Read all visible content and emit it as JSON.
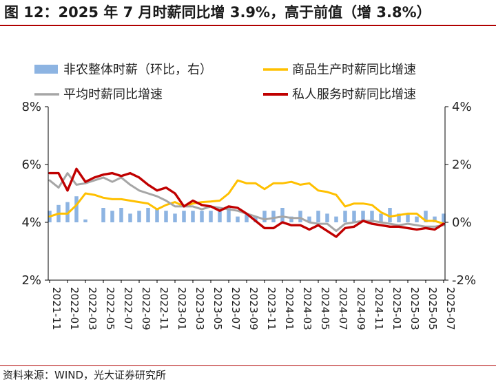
{
  "figure": {
    "title": "图 12：2025 年 7 月时薪同比增 3.9%，高于前值（增 3.8%）",
    "source": "资料来源：WIND，光大证券研究所"
  },
  "colors": {
    "bar": "#8db4e2",
    "goods": "#ffc000",
    "avg": "#a6a6a6",
    "private": "#c00000",
    "axis": "#000000",
    "title_rule": "#b00000"
  },
  "chart_data": {
    "type": "line",
    "x": [
      "2021-11",
      "2021-12",
      "2022-01",
      "2022-02",
      "2022-03",
      "2022-04",
      "2022-05",
      "2022-06",
      "2022-07",
      "2022-08",
      "2022-09",
      "2022-10",
      "2022-11",
      "2022-12",
      "2023-01",
      "2023-02",
      "2023-03",
      "2023-04",
      "2023-05",
      "2023-06",
      "2023-07",
      "2023-08",
      "2023-09",
      "2023-10",
      "2023-11",
      "2023-12",
      "2024-01",
      "2024-02",
      "2024-03",
      "2024-04",
      "2024-05",
      "2024-06",
      "2024-07",
      "2024-08",
      "2024-09",
      "2024-10",
      "2024-11",
      "2024-12",
      "2025-01",
      "2025-02",
      "2025-03",
      "2025-04",
      "2025-05",
      "2025-06",
      "2025-07"
    ],
    "x_tick_labels": [
      "2021-11",
      "2022-01",
      "2022-03",
      "2022-05",
      "2022-07",
      "2022-09",
      "2022-11",
      "2023-01",
      "2023-03",
      "2023-05",
      "2023-07",
      "2023-09",
      "2023-11",
      "2024-01",
      "2024-03",
      "2024-05",
      "2024-07",
      "2024-09",
      "2024-11",
      "2025-01",
      "2025-03",
      "2025-05",
      "2025-07"
    ],
    "y_left": {
      "ticks": [
        "2%",
        "4%",
        "6%",
        "8%"
      ],
      "ylim": [
        2,
        8
      ]
    },
    "y_right": {
      "ticks": [
        "-2%",
        "0%",
        "2%",
        "4%"
      ],
      "ylim": [
        -2,
        4
      ]
    },
    "series": [
      {
        "name": "非农整体时薪（环比，右）",
        "kind": "bar",
        "axis": "right",
        "color_key": "bar",
        "values": [
          0.4,
          0.6,
          0.7,
          0.9,
          0.1,
          0.0,
          0.5,
          0.4,
          0.5,
          0.3,
          0.4,
          0.5,
          0.5,
          0.4,
          0.3,
          0.4,
          0.4,
          0.4,
          0.4,
          0.4,
          0.5,
          0.2,
          0.3,
          0.2,
          0.4,
          0.4,
          0.5,
          0.2,
          0.4,
          0.2,
          0.4,
          0.3,
          0.2,
          0.4,
          0.4,
          0.4,
          0.4,
          0.3,
          0.5,
          0.3,
          0.3,
          0.2,
          0.4,
          0.2,
          0.3
        ]
      },
      {
        "name": "商品生产时薪同比增速",
        "kind": "line",
        "axis": "left",
        "color_key": "goods",
        "values": [
          4.2,
          4.3,
          4.3,
          4.6,
          5.0,
          4.95,
          4.85,
          4.8,
          4.8,
          4.75,
          4.7,
          4.65,
          4.45,
          4.6,
          4.7,
          4.55,
          4.65,
          4.7,
          4.72,
          4.75,
          5.0,
          5.45,
          5.35,
          5.35,
          5.15,
          5.35,
          5.35,
          5.4,
          5.3,
          5.35,
          5.1,
          5.05,
          4.95,
          4.55,
          4.65,
          4.65,
          4.6,
          4.35,
          4.2,
          4.25,
          4.3,
          4.3,
          4.05,
          4.05,
          3.95
        ]
      },
      {
        "name": "平均时薪同比增速",
        "kind": "line",
        "axis": "left",
        "color_key": "avg",
        "values": [
          5.45,
          5.2,
          5.7,
          5.3,
          5.35,
          5.45,
          5.55,
          5.4,
          5.55,
          5.3,
          5.1,
          5.0,
          4.9,
          4.75,
          4.55,
          4.55,
          4.55,
          4.45,
          4.55,
          4.5,
          4.45,
          4.4,
          4.3,
          4.2,
          4.1,
          4.15,
          4.2,
          4.15,
          4.15,
          4.0,
          3.95,
          3.95,
          3.7,
          3.95,
          4.0,
          4.05,
          4.05,
          4.0,
          3.95,
          3.9,
          3.95,
          3.9,
          3.85,
          3.85,
          3.9
        ]
      },
      {
        "name": "私人服务时薪同比增速",
        "kind": "line",
        "axis": "left",
        "color_key": "private",
        "values": [
          5.7,
          5.7,
          5.1,
          5.85,
          5.4,
          5.55,
          5.65,
          5.7,
          5.6,
          5.7,
          5.55,
          5.3,
          5.1,
          5.2,
          5.0,
          4.55,
          4.75,
          4.6,
          4.55,
          4.4,
          4.55,
          4.5,
          4.3,
          4.05,
          3.8,
          3.8,
          4.0,
          3.9,
          3.9,
          3.75,
          3.9,
          3.7,
          3.5,
          3.8,
          3.85,
          4.05,
          3.95,
          3.9,
          3.85,
          3.85,
          3.8,
          3.75,
          3.8,
          3.75,
          3.95
        ]
      }
    ],
    "legend": [
      "非农整体时薪（环比，右）",
      "商品生产时薪同比增速",
      "平均时薪同比增速",
      "私人服务时薪同比增速"
    ]
  }
}
